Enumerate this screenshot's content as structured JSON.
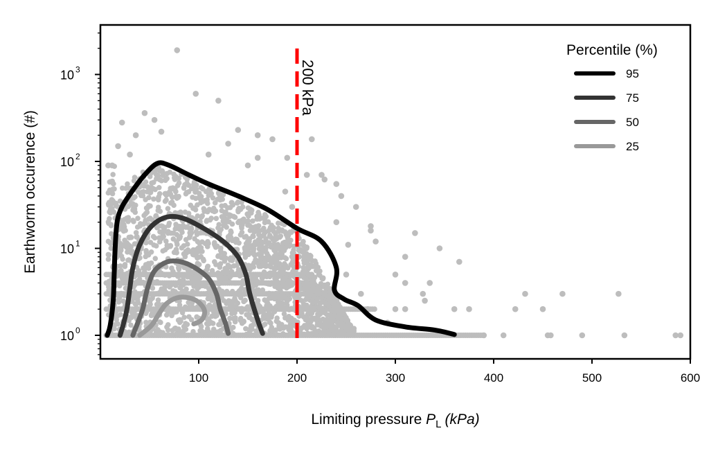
{
  "chart_data": {
    "type": "scatter",
    "xlabel_prefix": "Limiting pressure ",
    "xlabel_var": "P",
    "xlabel_sub": "L",
    "xlabel_unit": "(kPa)",
    "ylabel": "Earthworm occurence (#)",
    "xlim": [
      0,
      600
    ],
    "ylim": [
      0.55,
      3500
    ],
    "yscale": "log",
    "x_ticks": [
      100,
      200,
      300,
      400,
      500,
      600
    ],
    "y_ticks": [
      {
        "base": "10",
        "exp": "0",
        "value": 1
      },
      {
        "base": "10",
        "exp": "1",
        "value": 10
      },
      {
        "base": "10",
        "exp": "2",
        "value": 100
      },
      {
        "base": "10",
        "exp": "3",
        "value": 1000
      }
    ],
    "grid": false,
    "legend": {
      "title": "Percentile (%)",
      "placement": "top-right"
    },
    "scatter_color": "#bdbdbd",
    "threshold": {
      "x": 200,
      "label": "200 kPa",
      "color": "#ff0000"
    },
    "series": [
      {
        "name": "95",
        "color": "#000000",
        "points": [
          [
            7,
            1
          ],
          [
            10,
            1.3
          ],
          [
            13,
            2.5
          ],
          [
            14,
            5
          ],
          [
            15,
            10
          ],
          [
            17,
            20
          ],
          [
            22,
            30
          ],
          [
            32,
            45
          ],
          [
            45,
            70
          ],
          [
            58,
            95
          ],
          [
            70,
            90
          ],
          [
            90,
            70
          ],
          [
            110,
            55
          ],
          [
            140,
            40
          ],
          [
            170,
            28
          ],
          [
            200,
            17
          ],
          [
            225,
            12
          ],
          [
            240,
            6
          ],
          [
            238,
            3.3
          ],
          [
            248,
            2.6
          ],
          [
            262,
            2.2
          ],
          [
            280,
            1.5
          ],
          [
            310,
            1.25
          ],
          [
            340,
            1.15
          ],
          [
            360,
            1.02
          ]
        ]
      },
      {
        "name": "75",
        "color": "#333333",
        "points": [
          [
            20,
            1
          ],
          [
            23,
            1.3
          ],
          [
            27,
            2
          ],
          [
            30,
            3.5
          ],
          [
            33,
            6
          ],
          [
            40,
            11
          ],
          [
            52,
            18
          ],
          [
            68,
            23
          ],
          [
            85,
            22
          ],
          [
            105,
            17
          ],
          [
            125,
            12
          ],
          [
            140,
            8
          ],
          [
            148,
            5
          ],
          [
            152,
            3
          ],
          [
            160,
            1.5
          ],
          [
            165,
            1.05
          ]
        ]
      },
      {
        "name": "50",
        "color": "#666666",
        "points": [
          [
            33,
            1
          ],
          [
            38,
            1.4
          ],
          [
            43,
            2
          ],
          [
            48,
            3.5
          ],
          [
            55,
            5.5
          ],
          [
            68,
            7
          ],
          [
            82,
            7
          ],
          [
            96,
            6
          ],
          [
            110,
            4.5
          ],
          [
            118,
            3
          ],
          [
            122,
            2
          ],
          [
            127,
            1.4
          ],
          [
            130,
            1.05
          ]
        ]
      },
      {
        "name": "25",
        "color": "#999999",
        "points": [
          [
            40,
            1
          ],
          [
            52,
            1.3
          ],
          [
            60,
            1.8
          ],
          [
            67,
            2.3
          ],
          [
            78,
            2.7
          ],
          [
            90,
            2.7
          ],
          [
            100,
            2.4
          ],
          [
            106,
            1.9
          ],
          [
            103,
            1.5
          ],
          [
            95,
            1.35
          ]
        ]
      }
    ],
    "scatter_outliers": [
      [
        78,
        1900
      ],
      [
        45,
        360
      ],
      [
        55,
        300
      ],
      [
        97,
        600
      ],
      [
        120,
        500
      ],
      [
        140,
        230
      ],
      [
        160,
        200
      ],
      [
        175,
        180
      ],
      [
        130,
        160
      ],
      [
        110,
        120
      ],
      [
        190,
        110
      ],
      [
        215,
        180
      ],
      [
        225,
        70
      ],
      [
        245,
        40
      ],
      [
        260,
        30
      ],
      [
        275,
        16
      ],
      [
        280,
        12
      ],
      [
        252,
        11
      ],
      [
        240,
        20
      ],
      [
        250,
        5
      ],
      [
        265,
        3
      ],
      [
        272,
        2
      ],
      [
        292,
        1.4
      ],
      [
        300,
        2
      ],
      [
        310,
        2
      ],
      [
        328,
        3
      ],
      [
        330,
        2.5
      ],
      [
        335,
        4
      ],
      [
        360,
        2
      ],
      [
        375,
        2
      ],
      [
        390,
        1
      ],
      [
        410,
        1
      ],
      [
        422,
        2
      ],
      [
        432,
        3
      ],
      [
        450,
        2
      ],
      [
        470,
        3
      ],
      [
        490,
        1
      ],
      [
        527,
        3
      ],
      [
        533,
        1
      ],
      [
        590,
        1
      ],
      [
        585,
        1
      ],
      [
        455,
        1
      ],
      [
        458,
        1
      ],
      [
        310,
        4
      ],
      [
        300,
        5
      ],
      [
        310,
        8
      ],
      [
        365,
        7
      ],
      [
        345,
        10
      ],
      [
        320,
        15
      ],
      [
        275,
        18
      ],
      [
        188,
        45
      ],
      [
        195,
        30
      ],
      [
        240,
        55
      ],
      [
        228,
        62
      ],
      [
        210,
        70
      ],
      [
        160,
        110
      ],
      [
        150,
        90
      ],
      [
        12,
        90
      ],
      [
        18,
        150
      ],
      [
        22,
        280
      ],
      [
        62,
        220
      ],
      [
        36,
        200
      ],
      [
        30,
        120
      ],
      [
        8,
        90
      ]
    ]
  }
}
